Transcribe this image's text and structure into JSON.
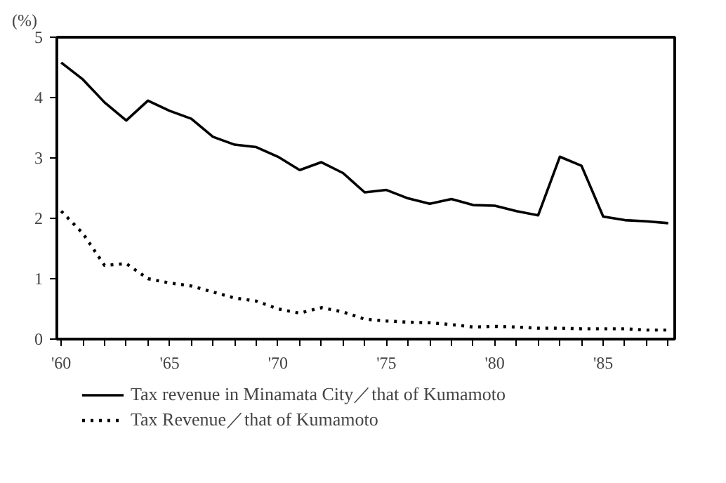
{
  "chart_data": {
    "type": "line",
    "ylabel": "(%)",
    "x": [
      1960,
      1961,
      1962,
      1963,
      1964,
      1965,
      1966,
      1967,
      1968,
      1969,
      1970,
      1971,
      1972,
      1973,
      1974,
      1975,
      1976,
      1977,
      1978,
      1979,
      1980,
      1981,
      1982,
      1983,
      1984,
      1985,
      1986,
      1987,
      1988
    ],
    "series": [
      {
        "name": "Tax revenue in Minamata City／that of Kumamoto",
        "color": "#000000",
        "line_style": "solid",
        "values": [
          4.58,
          4.3,
          3.92,
          3.62,
          3.95,
          3.78,
          3.65,
          3.35,
          3.22,
          3.18,
          3.02,
          2.8,
          2.93,
          2.75,
          2.43,
          2.47,
          2.33,
          2.24,
          2.32,
          2.22,
          2.21,
          2.12,
          2.05,
          3.02,
          2.87,
          2.03,
          1.97,
          1.95,
          1.92
        ]
      },
      {
        "name": "Tax Revenue／that of Kumamoto",
        "color": "#000000",
        "line_style": "dotted",
        "values": [
          2.12,
          1.75,
          1.22,
          1.25,
          1.0,
          0.93,
          0.88,
          0.78,
          0.68,
          0.63,
          0.5,
          0.43,
          0.52,
          0.45,
          0.33,
          0.3,
          0.28,
          0.27,
          0.24,
          0.2,
          0.21,
          0.2,
          0.18,
          0.18,
          0.17,
          0.17,
          0.17,
          0.15,
          0.15
        ]
      }
    ],
    "xlim": [
      1959.8,
      1988.3
    ],
    "ylim": [
      0,
      5
    ],
    "yticks": [
      0,
      1,
      2,
      3,
      4,
      5
    ],
    "xticks": [
      {
        "value": 1960,
        "label": "'60"
      },
      {
        "value": 1961,
        "label": null
      },
      {
        "value": 1962,
        "label": null
      },
      {
        "value": 1963,
        "label": null
      },
      {
        "value": 1964,
        "label": null
      },
      {
        "value": 1965,
        "label": "'65"
      },
      {
        "value": 1966,
        "label": null
      },
      {
        "value": 1967,
        "label": null
      },
      {
        "value": 1968,
        "label": null
      },
      {
        "value": 1969,
        "label": null
      },
      {
        "value": 1970,
        "label": "'70"
      },
      {
        "value": 1971,
        "label": null
      },
      {
        "value": 1972,
        "label": null
      },
      {
        "value": 1973,
        "label": null
      },
      {
        "value": 1974,
        "label": null
      },
      {
        "value": 1975,
        "label": "'75"
      },
      {
        "value": 1976,
        "label": null
      },
      {
        "value": 1977,
        "label": null
      },
      {
        "value": 1978,
        "label": null
      },
      {
        "value": 1979,
        "label": null
      },
      {
        "value": 1980,
        "label": "'80"
      },
      {
        "value": 1981,
        "label": null
      },
      {
        "value": 1982,
        "label": null
      },
      {
        "value": 1983,
        "label": null
      },
      {
        "value": 1984,
        "label": null
      },
      {
        "value": 1985,
        "label": "'85"
      },
      {
        "value": 1986,
        "label": null
      },
      {
        "value": 1987,
        "label": null
      },
      {
        "value": 1988,
        "label": null
      }
    ],
    "grid": false,
    "legend": "bottom",
    "marker": "none"
  }
}
